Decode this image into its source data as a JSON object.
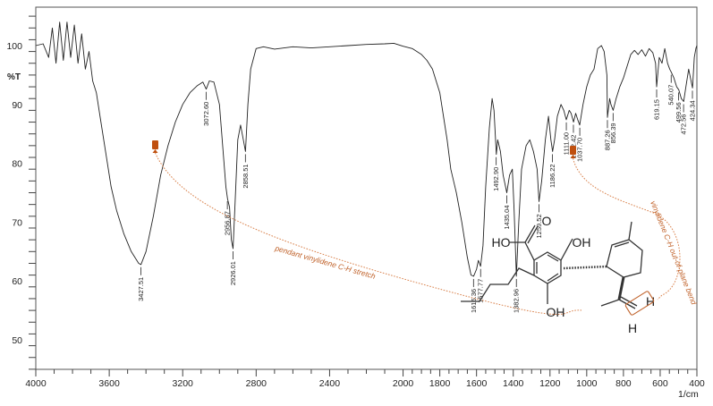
{
  "chart_data": {
    "type": "line",
    "title": "",
    "xlabel": "1/cm",
    "ylabel": "%T",
    "xlim": [
      4000,
      400
    ],
    "ylim": [
      45,
      107
    ],
    "x_ticks": [
      4000,
      3600,
      3200,
      2800,
      2400,
      2000,
      1800,
      1600,
      1400,
      1200,
      1000,
      800,
      600,
      400
    ],
    "y_ticks": [
      50,
      60,
      70,
      80,
      90,
      100
    ],
    "grid": false,
    "legend": null,
    "series": [
      {
        "name": "IR spectrum",
        "color": "#222222",
        "points": [
          [
            4000,
            100
          ],
          [
            3960,
            100.3
          ],
          [
            3930,
            98
          ],
          [
            3910,
            103
          ],
          [
            3890,
            97
          ],
          [
            3870,
            104
          ],
          [
            3850,
            97.5
          ],
          [
            3830,
            104
          ],
          [
            3810,
            98
          ],
          [
            3790,
            103.5
          ],
          [
            3770,
            97
          ],
          [
            3750,
            102
          ],
          [
            3730,
            96
          ],
          [
            3710,
            99
          ],
          [
            3690,
            94
          ],
          [
            3670,
            92
          ],
          [
            3650,
            88
          ],
          [
            3620,
            82
          ],
          [
            3590,
            76
          ],
          [
            3560,
            72
          ],
          [
            3520,
            68
          ],
          [
            3480,
            65
          ],
          [
            3440,
            63
          ],
          [
            3427,
            62.8
          ],
          [
            3400,
            65
          ],
          [
            3360,
            71
          ],
          [
            3320,
            78
          ],
          [
            3280,
            83
          ],
          [
            3240,
            87
          ],
          [
            3200,
            90
          ],
          [
            3160,
            92
          ],
          [
            3120,
            93.2
          ],
          [
            3090,
            93.8
          ],
          [
            3072,
            92.6
          ],
          [
            3055,
            94
          ],
          [
            3030,
            93.8
          ],
          [
            3000,
            90
          ],
          [
            2980,
            82
          ],
          [
            2965,
            76
          ],
          [
            2956,
            74
          ],
          [
            2945,
            72.5
          ],
          [
            2935,
            67
          ],
          [
            2926,
            65.5
          ],
          [
            2915,
            73
          ],
          [
            2900,
            84
          ],
          [
            2885,
            86.5
          ],
          [
            2870,
            84
          ],
          [
            2858,
            82
          ],
          [
            2845,
            90
          ],
          [
            2830,
            96
          ],
          [
            2800,
            99.5
          ],
          [
            2760,
            99.8
          ],
          [
            2700,
            99.4
          ],
          [
            2600,
            99.8
          ],
          [
            2500,
            99.6
          ],
          [
            2400,
            99.8
          ],
          [
            2300,
            100
          ],
          [
            2200,
            100.2
          ],
          [
            2100,
            100.3
          ],
          [
            2050,
            100.4
          ],
          [
            2000,
            99.9
          ],
          [
            1950,
            99.5
          ],
          [
            1900,
            98.5
          ],
          [
            1870,
            97.5
          ],
          [
            1840,
            96
          ],
          [
            1820,
            94
          ],
          [
            1800,
            92
          ],
          [
            1780,
            88
          ],
          [
            1760,
            84
          ],
          [
            1740,
            79
          ],
          [
            1710,
            75
          ],
          [
            1680,
            70
          ],
          [
            1650,
            64
          ],
          [
            1630,
            61
          ],
          [
            1616,
            60.8
          ],
          [
            1600,
            62
          ],
          [
            1590,
            63.5
          ],
          [
            1578,
            62.5
          ],
          [
            1565,
            66
          ],
          [
            1550,
            76
          ],
          [
            1530,
            86
          ],
          [
            1515,
            91
          ],
          [
            1505,
            89
          ],
          [
            1492,
            81.5
          ],
          [
            1485,
            84
          ],
          [
            1470,
            82
          ],
          [
            1455,
            78
          ],
          [
            1435,
            75
          ],
          [
            1420,
            78
          ],
          [
            1405,
            79
          ],
          [
            1395,
            72
          ],
          [
            1383,
            60.8
          ],
          [
            1370,
            70
          ],
          [
            1355,
            79
          ],
          [
            1330,
            83
          ],
          [
            1310,
            84
          ],
          [
            1290,
            82
          ],
          [
            1270,
            79
          ],
          [
            1260,
            73.5
          ],
          [
            1245,
            77
          ],
          [
            1225,
            84
          ],
          [
            1208,
            88
          ],
          [
            1195,
            84
          ],
          [
            1186,
            82
          ],
          [
            1175,
            84
          ],
          [
            1160,
            88
          ],
          [
            1140,
            90
          ],
          [
            1125,
            89
          ],
          [
            1111,
            87.4
          ],
          [
            1095,
            89
          ],
          [
            1085,
            88.5
          ],
          [
            1072,
            87
          ],
          [
            1060,
            88.5
          ],
          [
            1050,
            87.5
          ],
          [
            1038,
            86.5
          ],
          [
            1020,
            90
          ],
          [
            1000,
            93
          ],
          [
            980,
            95
          ],
          [
            960,
            96
          ],
          [
            940,
            99.5
          ],
          [
            920,
            100
          ],
          [
            905,
            99
          ],
          [
            890,
            95
          ],
          [
            887,
            87.8
          ],
          [
            875,
            91
          ],
          [
            868,
            90
          ],
          [
            856,
            89
          ],
          [
            840,
            91
          ],
          [
            820,
            93
          ],
          [
            800,
            94.5
          ],
          [
            780,
            96.5
          ],
          [
            760,
            98.5
          ],
          [
            740,
            99.2
          ],
          [
            720,
            98.5
          ],
          [
            700,
            99.3
          ],
          [
            680,
            98.2
          ],
          [
            660,
            99.5
          ],
          [
            640,
            98.8
          ],
          [
            625,
            97
          ],
          [
            619,
            93
          ],
          [
            605,
            98
          ],
          [
            590,
            97
          ],
          [
            575,
            99.5
          ],
          [
            560,
            97
          ],
          [
            548,
            96
          ],
          [
            540,
            95.5
          ],
          [
            525,
            94.5
          ],
          [
            510,
            93
          ],
          [
            499,
            92.5
          ],
          [
            485,
            91
          ],
          [
            472,
            90.5
          ],
          [
            460,
            93
          ],
          [
            445,
            96
          ],
          [
            435,
            94.5
          ],
          [
            424,
            92.8
          ],
          [
            414,
            98
          ],
          [
            405,
            99.6
          ],
          [
            400,
            100
          ]
        ]
      }
    ],
    "annotations": [
      {
        "text": "3427.51",
        "x": 3427.51,
        "y": 62.8
      },
      {
        "text": "3072.60",
        "x": 3072.6,
        "y": 92.6
      },
      {
        "text": "2956.87",
        "x": 2956.87,
        "y": 74
      },
      {
        "text": "2926.01",
        "x": 2926.01,
        "y": 65.5
      },
      {
        "text": "2858.51",
        "x": 2858.51,
        "y": 82
      },
      {
        "text": "1616.36",
        "x": 1616.36,
        "y": 60.8
      },
      {
        "text": "1577.77",
        "x": 1577.77,
        "y": 62.5
      },
      {
        "text": "1492.90",
        "x": 1492.9,
        "y": 81.5
      },
      {
        "text": "1435.04",
        "x": 1435.04,
        "y": 75
      },
      {
        "text": "1382.96",
        "x": 1382.96,
        "y": 60.8
      },
      {
        "text": "1259.52",
        "x": 1259.52,
        "y": 73.5
      },
      {
        "text": "1186.22",
        "x": 1186.22,
        "y": 82
      },
      {
        "text": "1111.00",
        "x": 1111.0,
        "y": 87.4
      },
      {
        "text": "1072.42",
        "x": 1072.42,
        "y": 87
      },
      {
        "text": "1037.70",
        "x": 1037.7,
        "y": 86.5
      },
      {
        "text": "887.26",
        "x": 887.26,
        "y": 87.8
      },
      {
        "text": "856.39",
        "x": 856.39,
        "y": 89
      },
      {
        "text": "619.15",
        "x": 619.15,
        "y": 93
      },
      {
        "text": "540.07",
        "x": 540.07,
        "y": 95.5
      },
      {
        "text": "499.56",
        "x": 499.56,
        "y": 92.5
      },
      {
        "text": "472.56",
        "x": 472.56,
        "y": 90.5
      },
      {
        "text": "424.34",
        "x": 424.34,
        "y": 92.8
      }
    ],
    "callouts": [
      {
        "text": "pendant vinylidene C-H stretch",
        "from_wavenumber": 3072.6
      },
      {
        "text": "vinylidene C-H out-of-plane bend",
        "from_wavenumber": 887.26
      }
    ]
  },
  "axis": {
    "y_title": "%T",
    "x_unit": "1/cm",
    "y_tick_labels": [
      "100",
      "90",
      "80",
      "70",
      "60",
      "50"
    ],
    "x_tick_labels": [
      "4000",
      "3600",
      "3200",
      "2800",
      "2400",
      "2000",
      "1800",
      "1600",
      "1400",
      "1200",
      "1000",
      "800",
      "600",
      "400"
    ]
  },
  "molecule": {
    "labels": {
      "ho": "HO",
      "o": "O",
      "oh_top": "OH",
      "oh_bottom": "OH",
      "h1": "H",
      "h2": "H"
    }
  },
  "colors": {
    "line": "#222222",
    "annotation": "#c0622a",
    "marker": "#c0500f",
    "axis": "#444444"
  }
}
